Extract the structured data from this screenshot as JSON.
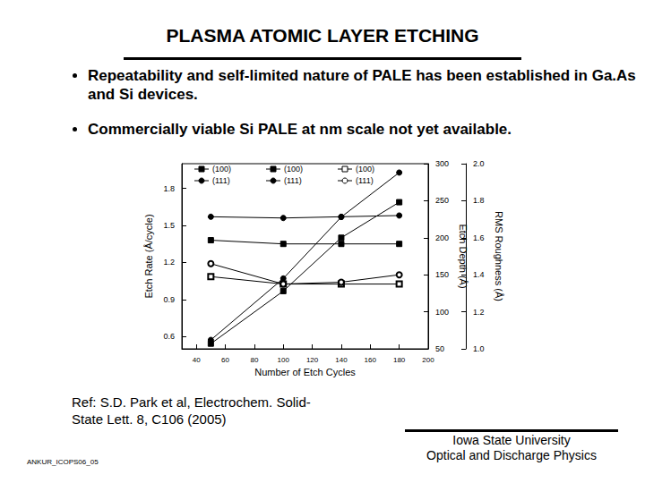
{
  "slide": {
    "title": "PLASMA ATOMIC LAYER ETCHING",
    "bullets": [
      "Repeatability and self-limited nature of PALE has been established in Ga.As and Si devices.",
      "Commercially viable Si PALE at nm scale not yet available."
    ],
    "reference": [
      "Ref: S.D. Park et al, Electrochem. Solid-",
      "State Lett. 8, C106 (2005)"
    ],
    "footer_left": "ANKUR_ICOPS06_05",
    "footer_right": [
      "Iowa State University",
      "Optical and Discharge Physics"
    ]
  },
  "chart_data": {
    "type": "line",
    "x_label": "Number of Etch Cycles",
    "y_label": "Etch Rate (Å/cycle)",
    "y2_label": "Etch Depth (Å)",
    "y3_label": "RMS Roughness (Å)",
    "x": [
      50,
      100,
      140,
      180
    ],
    "xlim": [
      30,
      200
    ],
    "xticks": [
      40,
      60,
      80,
      100,
      120,
      140,
      160,
      180,
      200
    ],
    "ylim": [
      0.5,
      2.0
    ],
    "yticks": [
      0.6,
      0.9,
      1.2,
      1.5,
      1.8
    ],
    "y2lim": [
      50,
      300
    ],
    "y2ticks": [
      50,
      100,
      150,
      200,
      250,
      300
    ],
    "y3lim": [
      1.0,
      2.0
    ],
    "y3ticks": [
      {
        "value": 1.0,
        "label": "1.0"
      },
      1.2,
      1.4,
      1.6,
      1.8,
      {
        "value": 2.0,
        "label": "2.0"
      }
    ],
    "legend": "upper left",
    "series": [
      {
        "name": "(100)",
        "color": "#000000",
        "marker": "square",
        "axis": "y",
        "values": [
          1.38,
          1.35,
          1.35,
          1.35
        ]
      },
      {
        "name": "(100)",
        "color": "#000000",
        "marker": "square",
        "axis": "y2",
        "values": [
          57,
          128,
          200,
          248
        ]
      },
      {
        "name": "(100)",
        "color": "#000000",
        "marker": "open_square",
        "axis": "y3",
        "values": [
          1.39,
          1.35,
          1.35,
          1.35
        ]
      },
      {
        "name": "(111)",
        "color": "#000000",
        "marker": "circle",
        "axis": "y",
        "values": [
          1.57,
          1.56,
          1.57,
          1.58
        ]
      },
      {
        "name": "(111)",
        "color": "#000000",
        "marker": "circle",
        "axis": "y2",
        "values": [
          62,
          145,
          228,
          288
        ]
      },
      {
        "name": "(111)",
        "color": "#000000",
        "marker": "open_circle",
        "axis": "y3",
        "values": [
          1.46,
          1.35,
          1.36,
          1.4
        ]
      }
    ]
  }
}
